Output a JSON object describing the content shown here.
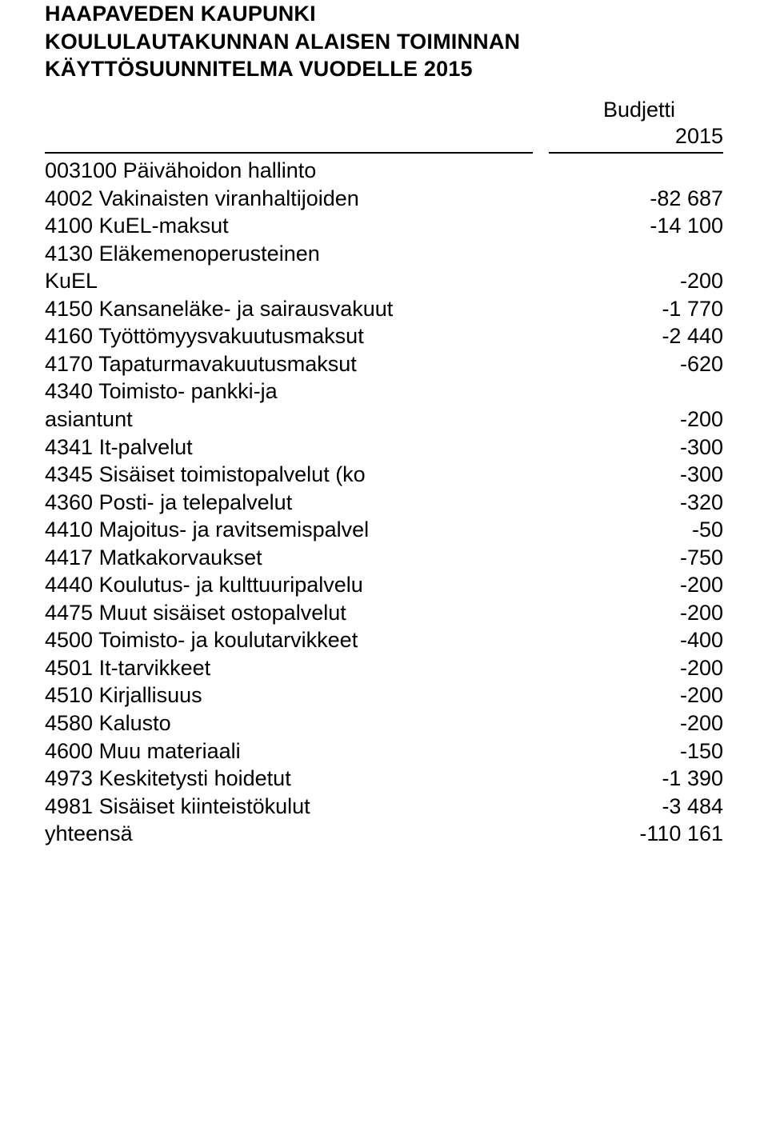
{
  "header": {
    "line1": "HAAPAVEDEN KAUPUNKI",
    "line2": "KOULULAUTAKUNNAN ALAISEN TOIMINNAN",
    "line3": "KÄYTTÖSUUNNITELMA VUODELLE 2015"
  },
  "budget_label": "Budjetti",
  "year": "2015",
  "section_title": "003100 Päivähoidon hallinto",
  "rows": [
    {
      "label": "4002 Vakinaisten viranhaltijoiden",
      "value": "-82 687"
    },
    {
      "label": "4100 KuEL-maksut",
      "value": "-14 100"
    },
    {
      "label": "4130 Eläkemenoperusteinen",
      "value": ""
    },
    {
      "label": "KuEL",
      "value": "-200",
      "indent": true
    },
    {
      "label": "4150 Kansaneläke- ja sairausvakuut",
      "value": "-1 770"
    },
    {
      "label": "4160 Työttömyysvakuutusmaksut",
      "value": "-2 440"
    },
    {
      "label": "4170 Tapaturmavakuutusmaksut",
      "value": "-620"
    },
    {
      "label": "4340 Toimisto- pankki-ja",
      "value": ""
    },
    {
      "label": "asiantunt",
      "value": "-200",
      "indent": true
    },
    {
      "label": "4341 It-palvelut",
      "value": "-300"
    },
    {
      "label": "4345 Sisäiset toimistopalvelut (ko",
      "value": "-300"
    },
    {
      "label": "4360 Posti- ja telepalvelut",
      "value": "-320"
    },
    {
      "label": "4410 Majoitus- ja ravitsemispalvel",
      "value": "-50"
    },
    {
      "label": "4417 Matkakorvaukset",
      "value": "-750"
    },
    {
      "label": "4440 Koulutus- ja kulttuuripalvelu",
      "value": "-200"
    },
    {
      "label": "4475 Muut sisäiset ostopalvelut",
      "value": "-200"
    },
    {
      "label": "4500 Toimisto- ja koulutarvikkeet",
      "value": "-400"
    },
    {
      "label": "4501 It-tarvikkeet",
      "value": "-200"
    },
    {
      "label": "4510 Kirjallisuus",
      "value": "-200"
    },
    {
      "label": "4580 Kalusto",
      "value": "-200"
    },
    {
      "label": "4600 Muu materiaali",
      "value": "-150"
    },
    {
      "label": "4973 Keskitetysti hoidetut",
      "value": "-1 390"
    },
    {
      "label": "4981 Sisäiset kiinteistökulut",
      "value": "-3 484"
    },
    {
      "label": "yhteensä",
      "value": "-110 161"
    }
  ]
}
